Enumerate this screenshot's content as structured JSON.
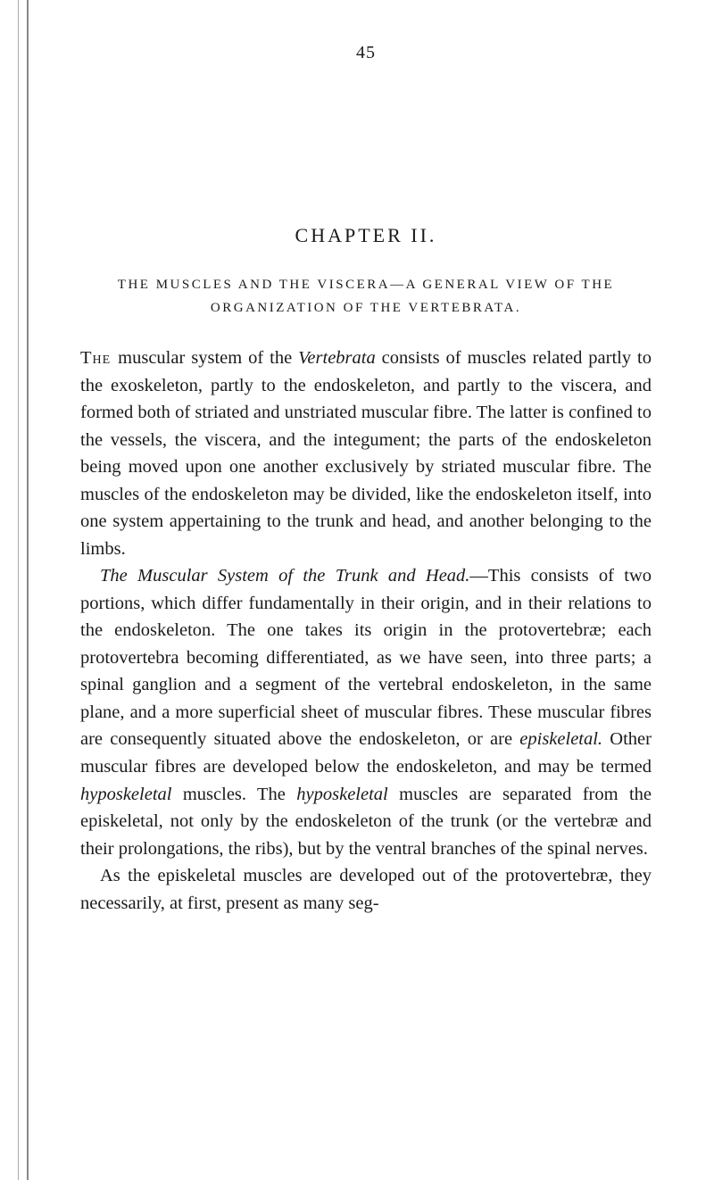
{
  "page_number": "45",
  "chapter": "CHAPTER II.",
  "subtitle": "THE MUSCLES AND THE VISCERA—A GENERAL VIEW OF THE ORGANIZATION OF THE VERTEBRATA.",
  "paragraphs": {
    "p1_start": "The ",
    "p1_rest": "muscular system of the ",
    "p1_italic1": "Vertebrata",
    "p1_cont": " consists of muscles related partly to the exoskeleton, partly to the endoskeleton, and partly to the viscera, and formed both of striated and unstriated muscular fibre. The latter is confined to the vessels, the viscera, and the integument; the parts of the endoskeleton being moved upon one another exclusively by striated muscular fibre. The muscles of the endoskeleton may be divided, like the endoskeleton itself, into one system appertaining to the trunk and head, and another belonging to the limbs.",
    "p2_italic": "The Muscular System of the Trunk and Head.",
    "p2_rest": "—This con­sists of two portions, which differ fundamentally in their origin, and in their relations to the endoskeleton. The one takes its origin in the protovertebræ; each protovertebra becoming differentiated, as we have seen, into three parts; a spinal ganglion and a segment of the vertebral endo­skeleton, in the same plane, and a more superficial sheet of muscular fibres. These muscular fibres are consequently situated above the endoskeleton, or are ",
    "p2_italic2": "episkeletal.",
    "p2_cont": " Other muscular fibres are developed below the endoskeleton, and may be termed ",
    "p2_italic3": "hyposkeletal",
    "p2_cont2": " muscles. The ",
    "p2_italic4": "hyposkeletal",
    "p2_cont3": " muscles are separated from the episkeletal, not only by the endoskeleton of the trunk (or the vertebræ and their pro­longations, the ribs), but by the ventral branches of the spinal nerves.",
    "p3": "As the episkeletal muscles are developed out of the proto­vertebræ, they necessarily, at first, present as many seg-"
  }
}
